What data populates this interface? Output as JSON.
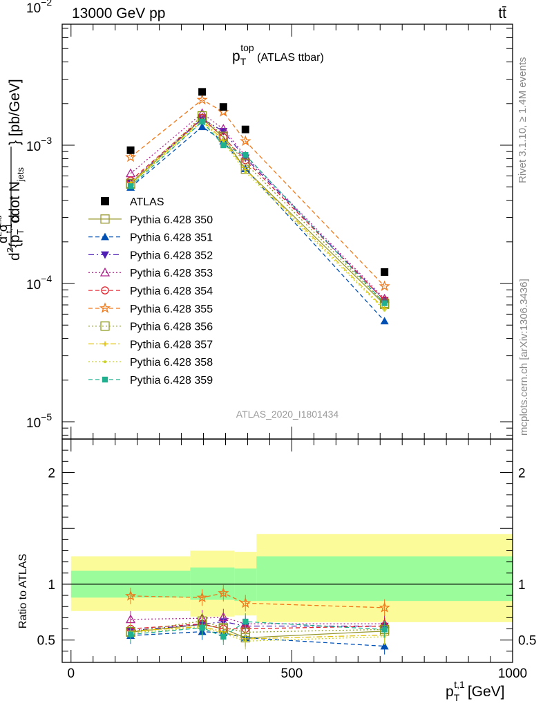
{
  "header": {
    "left": "13000 GeV pp",
    "right": "tt̄"
  },
  "side_labels": {
    "rivet": "Rivet 3.1.10, ≥ 1.4M events",
    "mcplots": "mcplots.cern.ch [arXiv:1306.3436]"
  },
  "chart_data": [
    {
      "type": "line",
      "title": "p_T^top (ATLAS ttbar)",
      "title_main": "p",
      "title_sub": "T",
      "title_sup": "top",
      "title_rest": " (ATLAS ttbar)",
      "analysis_label": "ATLAS_2020_I1801434",
      "xlabel": "p_T^{t,1} [GeV]",
      "ylabel": "d²σ^{fid} / d²{p_T^{t,1} cdot N_jets} [pb/GeV]",
      "ylabel_parts": {
        "main": "d",
        "sigma_sup": "2",
        "sigma": "σ",
        "fid": "fid",
        "denom": "d",
        "denom_sup": "2",
        "brace": "{p",
        "pt_sub": "T",
        "pt_sup": "t,1",
        "cdot": "cdot N",
        "jets": "jets",
        "unit": "} [pb/GeV]"
      },
      "yscale": "log",
      "xlim": [
        -20,
        1000
      ],
      "ylim": [
        7.5e-06,
        0.0075
      ],
      "y_tick_labels": [
        {
          "value": 0.01,
          "base": "10",
          "exp": "−2"
        },
        {
          "value": 0.001,
          "base": "10",
          "exp": "−3"
        },
        {
          "value": 0.0001,
          "base": "10",
          "exp": "−4"
        },
        {
          "value": 1e-05,
          "base": "10",
          "exp": "−5"
        }
      ],
      "legend_position": "center-left",
      "data": {
        "name": "ATLAS",
        "x": [
          135,
          297,
          345,
          395,
          710
        ],
        "y": [
          0.00092,
          0.00243,
          0.00189,
          0.0013,
          0.000121
        ]
      },
      "series": [
        {
          "name": "Pythia 6.428 350",
          "color": "#999933",
          "marker": "square-open",
          "dash": "solid",
          "x": [
            135,
            297,
            345,
            395,
            710
          ],
          "y": [
            0.000523,
            0.00156,
            0.00114,
            0.00067,
            7.05e-05
          ]
        },
        {
          "name": "Pythia 6.428 351",
          "color": "#0050b4",
          "marker": "triangle-up",
          "dash": "6,4",
          "x": [
            135,
            297,
            345,
            395,
            710
          ],
          "y": [
            0.000495,
            0.00136,
            0.00107,
            0.000675,
            5.35e-05
          ]
        },
        {
          "name": "Pythia 6.428 352",
          "color": "#5020b4",
          "marker": "triangle-down",
          "dash": "8,4,2,4",
          "x": [
            135,
            297,
            345,
            395,
            710
          ],
          "y": [
            0.00054,
            0.00155,
            0.00126,
            0.00081,
            7.55e-05
          ]
        },
        {
          "name": "Pythia 6.428 353",
          "color": "#b0208e",
          "marker": "triangle-open",
          "dash": "2,3",
          "x": [
            135,
            297,
            345,
            395,
            710
          ],
          "y": [
            0.000625,
            0.0017,
            0.00131,
            0.000835,
            7.75e-05
          ]
        },
        {
          "name": "Pythia 6.428 354",
          "color": "#e0202a",
          "marker": "circle-open",
          "dash": "6,4",
          "x": [
            135,
            297,
            345,
            395,
            710
          ],
          "y": [
            0.000555,
            0.00157,
            0.00114,
            0.00078,
            7.55e-05
          ]
        },
        {
          "name": "Pythia 6.428 355",
          "color": "#f07818",
          "marker": "star-open",
          "dash": "6,4",
          "x": [
            135,
            297,
            345,
            395,
            710
          ],
          "y": [
            0.00082,
            0.00213,
            0.00174,
            0.00107,
            9.55e-05
          ]
        },
        {
          "name": "Pythia 6.428 356",
          "color": "#8c9a1a",
          "marker": "square-open",
          "dash": "2,3",
          "x": [
            135,
            297,
            345,
            395,
            710
          ],
          "y": [
            0.00053,
            0.00163,
            0.00116,
            0.00074,
            7.2e-05
          ]
        },
        {
          "name": "Pythia 6.428 357",
          "color": "#e0c000",
          "marker": "cross",
          "dash": "8,3,2,3",
          "x": [
            135,
            297,
            345,
            395,
            710
          ],
          "y": [
            0.000535,
            0.00151,
            0.00109,
            0.000665,
            6.55e-05
          ]
        },
        {
          "name": "Pythia 6.428 358",
          "color": "#c8d228",
          "marker": "dot",
          "dash": "2,3",
          "x": [
            135,
            297,
            345,
            395,
            710
          ],
          "y": [
            0.00052,
            0.00148,
            0.00106,
            0.00064,
            6.4e-05
          ]
        },
        {
          "name": "Pythia 6.428 359",
          "color": "#20b090",
          "marker": "square",
          "dash": "6,4",
          "x": [
            135,
            297,
            345,
            395,
            710
          ],
          "y": [
            0.000505,
            0.00148,
            0.001,
            0.00085,
            7.2e-05
          ]
        }
      ]
    },
    {
      "type": "line",
      "ylabel": "Ratio to ATLAS",
      "xlim": [
        -20,
        1000
      ],
      "ylim": [
        0.3,
        2.3
      ],
      "x_tick_labels": [
        0,
        500,
        1000
      ],
      "y_tick_labels": [
        0.5,
        1,
        2
      ],
      "reference_line": 1,
      "bands": [
        {
          "x0": 0,
          "x1": 270,
          "y_inner": [
            0.88,
            1.12
          ],
          "y_outer": [
            0.76,
            1.25
          ]
        },
        {
          "x0": 270,
          "x1": 370,
          "y_inner": [
            0.86,
            1.15
          ],
          "y_outer": [
            0.71,
            1.3
          ]
        },
        {
          "x0": 370,
          "x1": 420,
          "y_inner": [
            0.85,
            1.14
          ],
          "y_outer": [
            0.72,
            1.29
          ]
        },
        {
          "x0": 420,
          "x1": 1000,
          "y_inner": [
            0.85,
            1.25
          ],
          "y_outer": [
            0.66,
            1.45
          ]
        }
      ],
      "band_colors": {
        "outer": "#fbfb9a",
        "inner": "#9afc9a"
      },
      "series": [
        {
          "name": "Pythia 6.428 350",
          "y": [
            0.57,
            0.64,
            0.6,
            0.52,
            0.58
          ]
        },
        {
          "name": "Pythia 6.428 351",
          "y": [
            0.54,
            0.575,
            0.565,
            0.52,
            0.445
          ]
        },
        {
          "name": "Pythia 6.428 352",
          "y": [
            0.585,
            0.64,
            0.665,
            0.625,
            0.625
          ]
        },
        {
          "name": "Pythia 6.428 353",
          "y": [
            0.685,
            0.695,
            0.705,
            0.645,
            0.645
          ]
        },
        {
          "name": "Pythia 6.428 354",
          "y": [
            0.6,
            0.645,
            0.6,
            0.6,
            0.625
          ]
        },
        {
          "name": "Pythia 6.428 355",
          "y": [
            0.895,
            0.88,
            0.92,
            0.83,
            0.79
          ]
        },
        {
          "name": "Pythia 6.428 356",
          "y": [
            0.575,
            0.67,
            0.61,
            0.57,
            0.595
          ]
        },
        {
          "name": "Pythia 6.428 357",
          "y": [
            0.58,
            0.62,
            0.575,
            0.51,
            0.545
          ]
        },
        {
          "name": "Pythia 6.428 358",
          "y": [
            0.565,
            0.61,
            0.56,
            0.49,
            0.53
          ]
        },
        {
          "name": "Pythia 6.428 359",
          "y": [
            0.55,
            0.61,
            0.53,
            0.665,
            0.595
          ]
        }
      ]
    }
  ]
}
